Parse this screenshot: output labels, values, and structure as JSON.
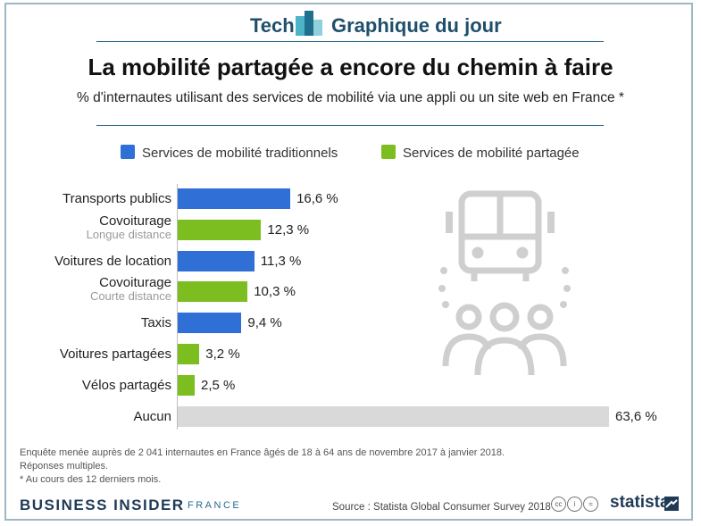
{
  "header": {
    "tech": "Tech",
    "graphique": "Graphique du jour"
  },
  "title": "La mobilité partagée a encore du chemin à faire",
  "subtitle": "% d'internautes utilisant des services de mobilité via une appli ou un site web en France *",
  "colors": {
    "traditional": "#2f6fd6",
    "shared": "#7cbd1f",
    "none": "#d9d9d9",
    "accent": "#1f4f6b"
  },
  "chart_data": {
    "type": "bar",
    "orientation": "horizontal",
    "title": "La mobilité partagée a encore du chemin à faire",
    "subtitle": "% d'internautes utilisant des services de mobilité via une appli ou un site web en France *",
    "legend": [
      {
        "name": "Services de mobilité traditionnels",
        "color": "#2f6fd6"
      },
      {
        "name": "Services de mobilité partagée",
        "color": "#7cbd1f"
      }
    ],
    "legend_position": "top",
    "grid": false,
    "xlim": [
      0,
      63.6
    ],
    "categories": [
      {
        "label": "Transports publics",
        "sub": "",
        "value": 16.6,
        "value_label": "16,6 %",
        "series": "Services de mobilité traditionnels"
      },
      {
        "label": "Covoiturage",
        "sub": "Longue distance",
        "value": 12.3,
        "value_label": "12,3 %",
        "series": "Services de mobilité partagée"
      },
      {
        "label": "Voitures de location",
        "sub": "",
        "value": 11.3,
        "value_label": "11,3 %",
        "series": "Services de mobilité traditionnels"
      },
      {
        "label": "Covoiturage",
        "sub": "Courte distance",
        "value": 10.3,
        "value_label": "10,3 %",
        "series": "Services de mobilité partagée"
      },
      {
        "label": "Taxis",
        "sub": "",
        "value": 9.4,
        "value_label": "9,4 %",
        "series": "Services de mobilité traditionnels"
      },
      {
        "label": "Voitures partagées",
        "sub": "",
        "value": 3.2,
        "value_label": "3,2 %",
        "series": "Services de mobilité partagée"
      },
      {
        "label": "Vélos partagés",
        "sub": "",
        "value": 2.5,
        "value_label": "2,5 %",
        "series": "Services de mobilité partagée"
      },
      {
        "label": "Aucun",
        "sub": "",
        "value": 63.6,
        "value_label": "63,6 %",
        "series": "none"
      }
    ]
  },
  "footnotes": [
    "Enquête menée auprès de 2 041 internautes en France âgés de 18 à 64 ans de novembre 2017 à janvier 2018.",
    "Réponses multiples.",
    "* Au cours des 12 derniers mois."
  ],
  "footer": {
    "brand": "BUSINESS INSIDER",
    "brand_country": "FRANCE",
    "source": "Source : Statista Global Consumer Survey 2018",
    "statista": "statista"
  },
  "icons": [
    "bus-icon",
    "people-icon"
  ]
}
